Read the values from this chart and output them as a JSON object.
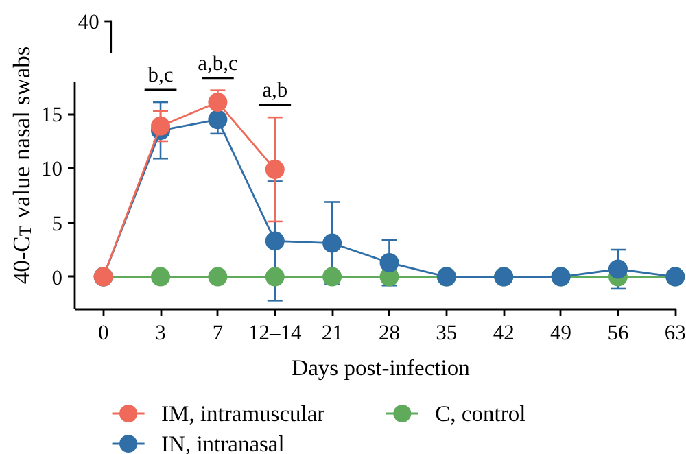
{
  "chart_data": {
    "type": "line",
    "xlabel": "Days post-infection",
    "ylabel": "40-C$_{T}$ value nasal swabs",
    "categories": [
      "0",
      "3",
      "7",
      "12–14",
      "21",
      "28",
      "35",
      "42",
      "49",
      "56",
      "63"
    ],
    "ylim": [
      -3,
      18
    ],
    "yticks": [
      0,
      5,
      10,
      15
    ],
    "grid": false,
    "marker": "circle",
    "line_style": "solid",
    "legend": "bottom",
    "series": [
      {
        "name": "IM, intramuscular",
        "color": "#ef6a5a",
        "values": [
          0,
          13.9,
          16.1,
          9.9,
          null,
          null,
          null,
          null,
          null,
          null,
          null
        ],
        "errors": [
          null,
          1.4,
          1.1,
          4.8,
          null,
          null,
          null,
          null,
          null,
          null,
          null
        ]
      },
      {
        "name": "IN, intranasal",
        "color": "#2f6ea6",
        "values": [
          0,
          13.5,
          14.5,
          3.3,
          3.1,
          1.3,
          0,
          0,
          0,
          0.7,
          0
        ],
        "errors": [
          null,
          2.6,
          1.3,
          5.5,
          3.8,
          2.1,
          null,
          null,
          null,
          1.8,
          null
        ]
      },
      {
        "name": "C, control",
        "color": "#5fab5b",
        "values": [
          0,
          0,
          0,
          0,
          0,
          0,
          0,
          0,
          0,
          0,
          0
        ]
      }
    ],
    "annotations": [
      "40",
      "b,c",
      "a,b,c",
      "a,b"
    ]
  }
}
